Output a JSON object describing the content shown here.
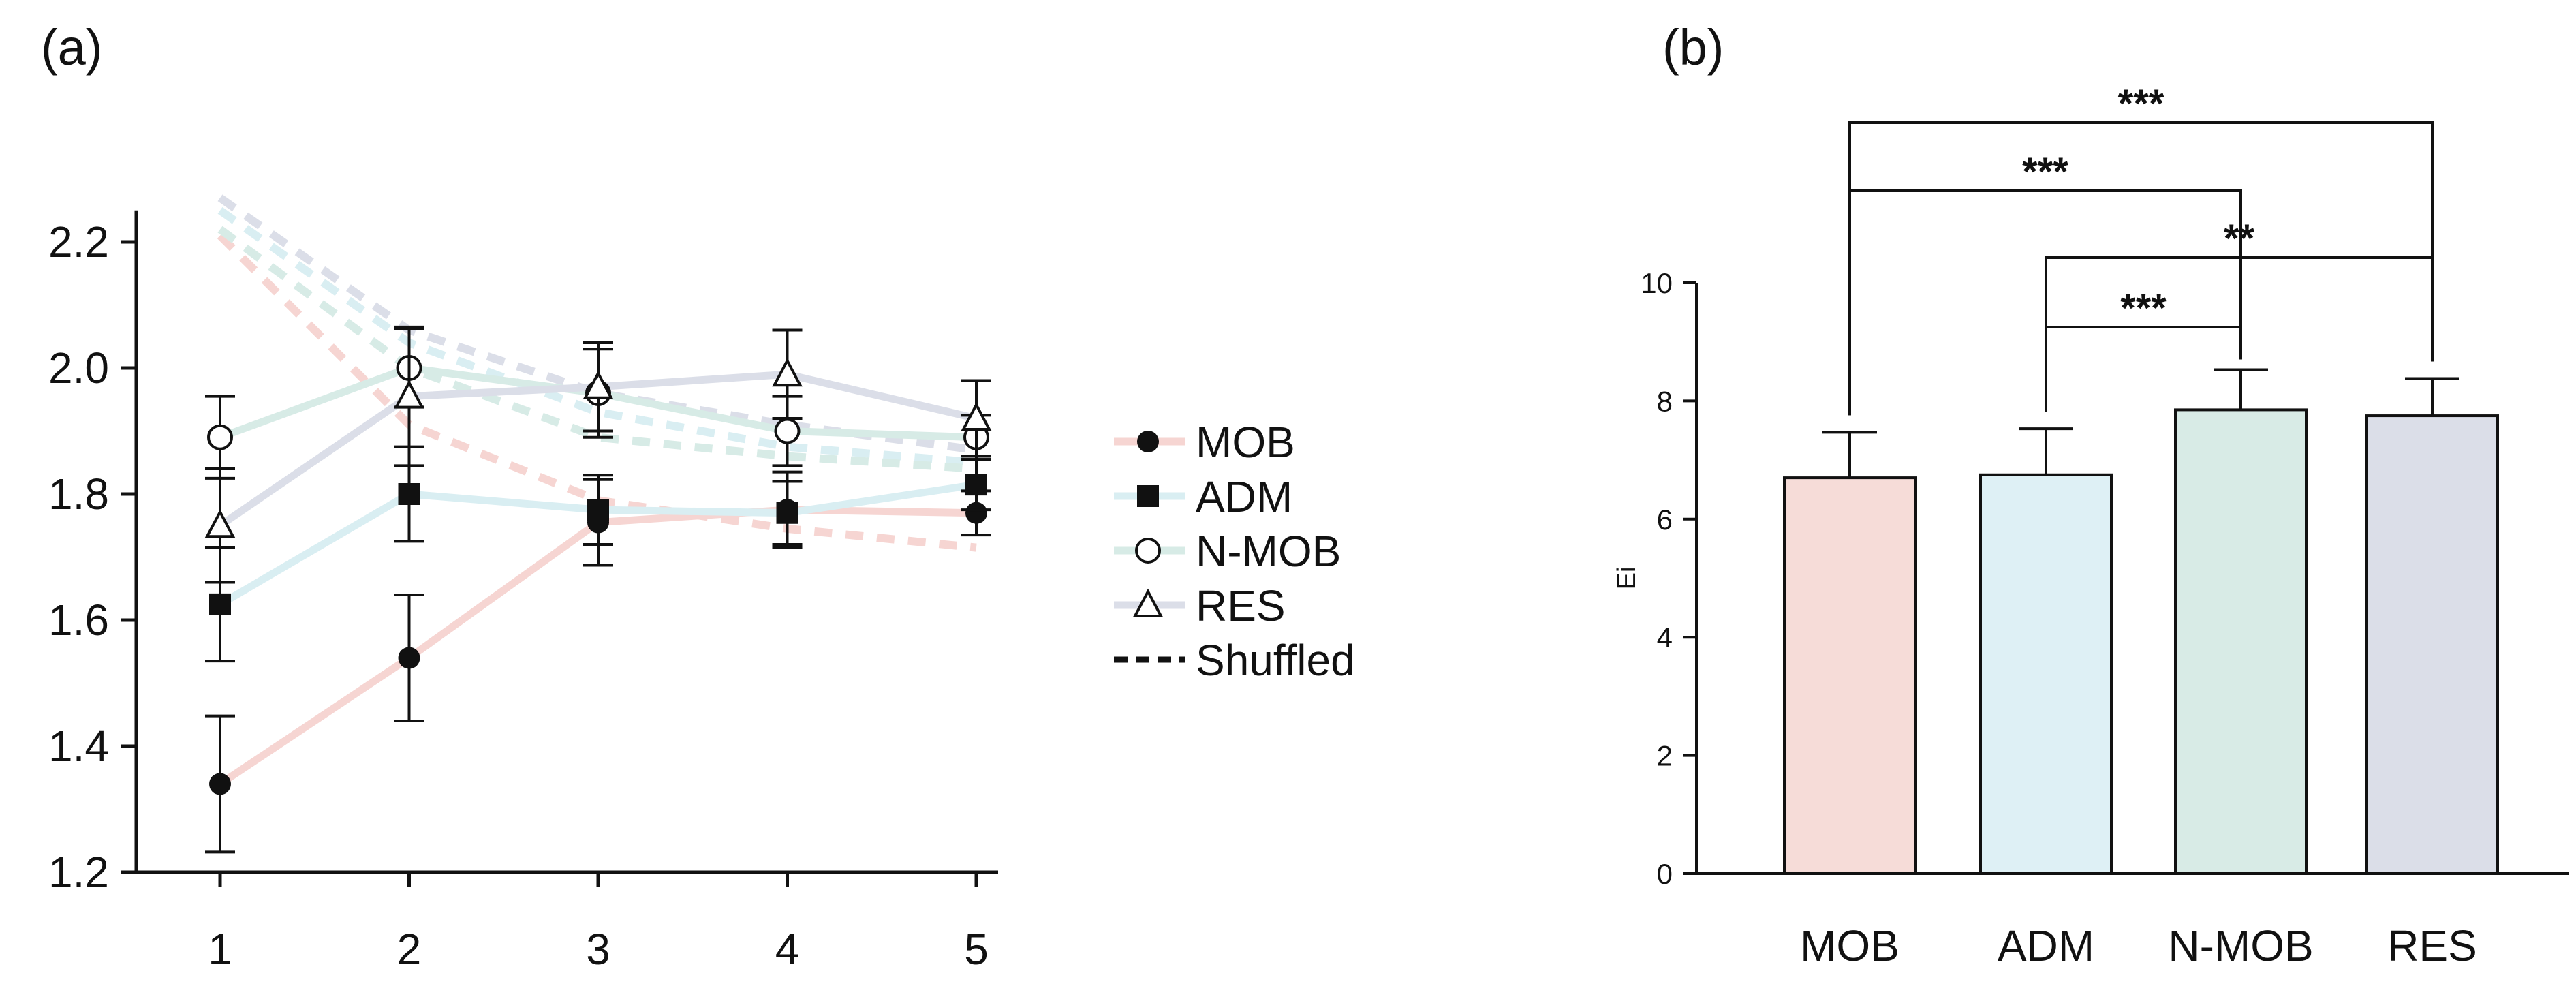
{
  "chart_data": [
    {
      "panel_label": "(a)",
      "type": "line",
      "title": "",
      "xlabel": "",
      "ylabel": "",
      "x": [
        1,
        2,
        3,
        4,
        5
      ],
      "x_tick_labels": [
        "1",
        "2",
        "3",
        "4",
        "5"
      ],
      "ylim": [
        1.2,
        2.25
      ],
      "y_ticks": [
        1.2,
        1.4,
        1.6,
        1.8,
        2.0,
        2.2
      ],
      "y_tick_labels": [
        "1.2",
        "1.4",
        "1.6",
        "1.8",
        "2.0",
        "2.2"
      ],
      "grid": false,
      "legend_position": "right",
      "series": [
        {
          "name": "MOB",
          "marker": "filled-circle",
          "color": "#f6d5d2",
          "values": [
            1.34,
            1.54,
            1.755,
            1.775,
            1.77
          ],
          "errors": [
            0.108,
            0.1,
            0.068,
            0.06,
            0.035
          ],
          "shuffled": [
            2.21,
            1.91,
            1.79,
            1.745,
            1.715
          ]
        },
        {
          "name": "ADM",
          "marker": "filled-square",
          "color": "#d9eef2",
          "values": [
            1.625,
            1.8,
            1.775,
            1.77,
            1.815
          ],
          "errors": [
            0.09,
            0.075,
            0.055,
            0.05,
            0.04
          ],
          "shuffled": [
            2.25,
            2.04,
            1.93,
            1.875,
            1.85
          ]
        },
        {
          "name": "N-MOB",
          "marker": "open-circle",
          "color": "#d7ebe6",
          "values": [
            1.89,
            2.0,
            1.96,
            1.9,
            1.89
          ],
          "errors": [
            0.065,
            0.062,
            0.07,
            0.055,
            0.035
          ],
          "shuffled": [
            2.22,
            2.0,
            1.89,
            1.86,
            1.84
          ]
        },
        {
          "name": "RES",
          "marker": "open-triangle",
          "color": "#dbdee8",
          "values": [
            1.75,
            1.955,
            1.97,
            1.99,
            1.92
          ],
          "errors": [
            0.09,
            0.11,
            0.07,
            0.07,
            0.06
          ],
          "shuffled": [
            2.27,
            2.06,
            1.96,
            1.91,
            1.87
          ]
        }
      ],
      "legend": [
        {
          "label": "MOB",
          "marker": "filled-circle",
          "color": "#f6d5d2"
        },
        {
          "label": "ADM",
          "marker": "filled-square",
          "color": "#d9eef2"
        },
        {
          "label": "N-MOB",
          "marker": "open-circle",
          "color": "#d7ebe6"
        },
        {
          "label": "RES",
          "marker": "open-triangle",
          "color": "#dbdee8"
        },
        {
          "label": "Shuffled",
          "marker": "dashed-line",
          "color": "#111111"
        }
      ]
    },
    {
      "panel_label": "(b)",
      "type": "bar",
      "title": "",
      "xlabel": "",
      "ylabel": "Ei",
      "categories": [
        "MOB",
        "ADM",
        "N-MOB",
        "RES"
      ],
      "values": [
        6.7,
        6.75,
        7.85,
        7.75
      ],
      "errors": [
        0.77,
        0.78,
        0.68,
        0.63
      ],
      "colors": [
        "#f6dcd8",
        "#def0f5",
        "#d8ebe6",
        "#dbdee8"
      ],
      "ylim": [
        0,
        10
      ],
      "y_ticks": [
        0,
        2,
        4,
        6,
        8,
        10
      ],
      "y_tick_labels": [
        "0",
        "2",
        "4",
        "6",
        "8",
        "10"
      ],
      "grid": false,
      "significance": [
        {
          "from": "MOB",
          "to": "RES",
          "label": "***"
        },
        {
          "from": "MOB",
          "to": "N-MOB",
          "label": "***"
        },
        {
          "from": "ADM",
          "to": "RES",
          "label": "**"
        },
        {
          "from": "ADM",
          "to": "N-MOB",
          "label": "***"
        }
      ]
    }
  ]
}
